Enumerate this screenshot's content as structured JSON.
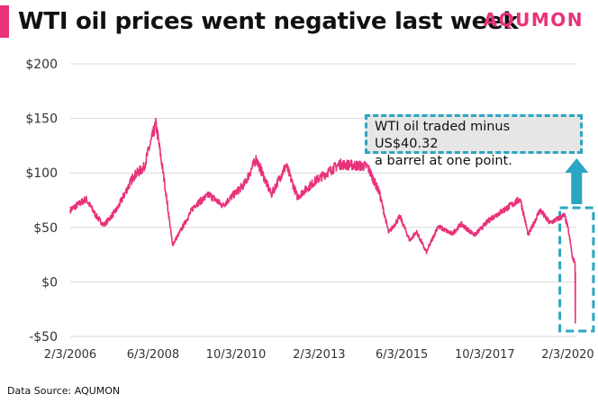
{
  "header": {
    "title": "WTI oil prices went negative last week",
    "brand": "AQUMON"
  },
  "footer": {
    "source": "Data Source: AQUMON"
  },
  "annotation": {
    "line1": "WTI oil traded minus US$40.32",
    "line2": "a barrel at one point."
  },
  "colors": {
    "accent": "#e8327a",
    "series": "#e8327a",
    "highlight": "#2aa6c2",
    "grid": "#d9d9d9"
  },
  "chart_data": {
    "type": "line",
    "xlabel": "",
    "ylabel": "",
    "ylim": [
      -50,
      200
    ],
    "yticks": [
      200,
      150,
      100,
      50,
      0,
      -50
    ],
    "yticklabels": [
      "$200",
      "$150",
      "$100",
      "$50",
      "$0",
      "-$50"
    ],
    "xlim": [
      "2006-02-03",
      "2020-05-01"
    ],
    "xticks": [
      "2006-02-03",
      "2008-06-03",
      "2010-10-03",
      "2013-02-03",
      "2015-06-03",
      "2017-10-03",
      "2020-02-03"
    ],
    "xticklabels": [
      "2/3/2006",
      "6/3/2008",
      "10/3/2010",
      "2/3/2013",
      "6/3/2015",
      "10/3/2017",
      "2/3/2020"
    ],
    "grid": true,
    "legend": "none",
    "series": [
      {
        "name": "",
        "color": "#e8327a",
        "points": [
          [
            "2006-02-03",
            66
          ],
          [
            "2006-07-15",
            76
          ],
          [
            "2006-11-01",
            60
          ],
          [
            "2007-01-15",
            52
          ],
          [
            "2007-06-01",
            67
          ],
          [
            "2007-11-15",
            97
          ],
          [
            "2008-03-01",
            105
          ],
          [
            "2008-07-03",
            145
          ],
          [
            "2008-10-01",
            90
          ],
          [
            "2008-12-20",
            34
          ],
          [
            "2009-03-01",
            45
          ],
          [
            "2009-08-01",
            70
          ],
          [
            "2010-01-01",
            80
          ],
          [
            "2010-05-20",
            70
          ],
          [
            "2011-01-01",
            90
          ],
          [
            "2011-04-29",
            113
          ],
          [
            "2011-10-01",
            80
          ],
          [
            "2012-03-01",
            107
          ],
          [
            "2012-06-25",
            78
          ],
          [
            "2013-01-01",
            93
          ],
          [
            "2013-09-01",
            108
          ],
          [
            "2014-06-15",
            106
          ],
          [
            "2014-10-15",
            82
          ],
          [
            "2015-01-20",
            45
          ],
          [
            "2015-05-15",
            60
          ],
          [
            "2015-08-24",
            38
          ],
          [
            "2015-11-01",
            46
          ],
          [
            "2016-02-11",
            27
          ],
          [
            "2016-06-08",
            51
          ],
          [
            "2016-11-01",
            44
          ],
          [
            "2017-02-01",
            53
          ],
          [
            "2017-06-21",
            43
          ],
          [
            "2017-12-01",
            58
          ],
          [
            "2018-10-03",
            76
          ],
          [
            "2018-12-24",
            43
          ],
          [
            "2019-04-23",
            66
          ],
          [
            "2019-08-01",
            54
          ],
          [
            "2019-12-31",
            61
          ],
          [
            "2020-02-03",
            50
          ],
          [
            "2020-03-09",
            31
          ],
          [
            "2020-03-20",
            22
          ],
          [
            "2020-04-17",
            18
          ],
          [
            "2020-04-20",
            -37.63
          ],
          [
            "2020-04-21",
            10
          ]
        ]
      }
    ]
  }
}
